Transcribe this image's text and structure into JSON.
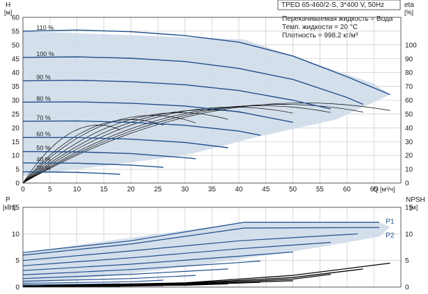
{
  "title": "TPED 65-460/2-S, 3*400 V, 50Hz",
  "info_lines": [
    "Перекачиваемая жидкость = Вода",
    "Темп. жидкости = 20 °C",
    "Плотность = 998.2 кг/м³"
  ],
  "colors": {
    "curve": "#1f4f8c",
    "area_fill": "#cfdcea",
    "eff_curve": "#000000",
    "grid": "#bfbfbf"
  },
  "chart_data": [
    {
      "type": "line",
      "y_label_letter": "H",
      "y_unit": "[м]",
      "right_label": "eta",
      "right_unit": "[%]",
      "x_label": "Q",
      "x_unit": "[м³/ч]",
      "xlim": [
        0,
        70
      ],
      "ylim": [
        0,
        60
      ],
      "right_ylim": [
        0,
        120
      ],
      "x_ticks": [
        0,
        5,
        10,
        15,
        20,
        25,
        30,
        35,
        40,
        45,
        50,
        55,
        60,
        65
      ],
      "y_ticks": [
        0,
        5,
        10,
        15,
        20,
        25,
        30,
        35,
        40,
        45,
        50,
        55,
        60
      ],
      "right_ticks": [
        0,
        10,
        20,
        30,
        40,
        50,
        60,
        70,
        80,
        90,
        100
      ],
      "grid": true,
      "operating_range": [
        [
          0,
          55
        ],
        [
          41,
          52
        ],
        [
          65,
          36
        ],
        [
          68,
          32
        ],
        [
          58,
          23
        ],
        [
          44,
          17
        ],
        [
          30,
          10
        ],
        [
          14,
          6
        ],
        [
          0,
          2.5
        ]
      ],
      "series": [
        {
          "name": "110 %",
          "x": [
            0,
            10,
            20,
            30,
            40,
            50,
            60,
            68
          ],
          "y": [
            55,
            55.4,
            54.8,
            53.4,
            51,
            46,
            38.5,
            32
          ]
        },
        {
          "name": "100 %",
          "x": [
            0,
            10,
            20,
            30,
            40,
            50,
            60,
            63
          ],
          "y": [
            45.5,
            45.7,
            45.2,
            44,
            41.5,
            37.5,
            31,
            28.5
          ]
        },
        {
          "name": "90 %",
          "x": [
            0,
            10,
            20,
            30,
            40,
            50,
            57
          ],
          "y": [
            37,
            37.2,
            36.7,
            35.6,
            33.5,
            30,
            26.8
          ]
        },
        {
          "name": "80 %",
          "x": [
            0,
            10,
            20,
            30,
            40,
            50
          ],
          "y": [
            29.3,
            29.4,
            28.9,
            27.9,
            25.8,
            22
          ]
        },
        {
          "name": "70 %",
          "x": [
            0,
            10,
            20,
            30,
            40,
            44
          ],
          "y": [
            22.4,
            22.5,
            22,
            20.9,
            18.8,
            17.3
          ]
        },
        {
          "name": "60 %",
          "x": [
            0,
            10,
            20,
            30,
            38
          ],
          "y": [
            16.5,
            16.5,
            15.9,
            14.7,
            12.8
          ]
        },
        {
          "name": "50 %",
          "x": [
            0,
            10,
            20,
            30,
            32
          ],
          "y": [
            11.4,
            11.3,
            10.7,
            9.2,
            8.8
          ]
        },
        {
          "name": "40 %",
          "x": [
            0,
            10,
            20,
            26
          ],
          "y": [
            7.3,
            7.2,
            6.5,
            5.7
          ]
        },
        {
          "name": "30 %",
          "x": [
            0,
            10,
            18
          ],
          "y": [
            4.1,
            3.9,
            3.2
          ]
        }
      ],
      "efficiency_curves": [
        {
          "q_max": 68,
          "eta_peak": 58,
          "q_peak": 52
        },
        {
          "q_max": 63,
          "eta_peak": 57,
          "q_peak": 48
        },
        {
          "q_max": 57,
          "eta_peak": 56,
          "q_peak": 44
        },
        {
          "q_max": 50,
          "eta_peak": 55,
          "q_peak": 39
        },
        {
          "q_max": 44,
          "eta_peak": 53,
          "q_peak": 34
        },
        {
          "q_max": 38,
          "eta_peak": 51,
          "q_peak": 29
        },
        {
          "q_max": 32,
          "eta_peak": 49,
          "q_peak": 24
        },
        {
          "q_max": 26,
          "eta_peak": 46,
          "q_peak": 20
        },
        {
          "q_max": 18,
          "eta_peak": 42,
          "q_peak": 14
        }
      ]
    },
    {
      "type": "line",
      "y_label_letter": "P",
      "y_unit": "[кВт]",
      "right_label": "NPSH",
      "right_unit": "[м]",
      "xlim": [
        0,
        70
      ],
      "ylim": [
        0,
        15
      ],
      "right_ylim": [
        0,
        15
      ],
      "y_ticks": [
        0,
        5,
        10,
        15
      ],
      "right_ticks": [
        0,
        5,
        10,
        15
      ],
      "x_ticks": [
        0,
        5,
        10,
        15,
        20,
        25,
        30,
        35,
        40,
        45,
        50,
        55,
        60,
        65
      ],
      "grid": true,
      "series_labels": [
        "P1",
        "P2"
      ],
      "power_range": [
        [
          0,
          6.5
        ],
        [
          41,
          12.2
        ],
        [
          66,
          12.2
        ],
        [
          68,
          11.3
        ],
        [
          66,
          9.5
        ],
        [
          55,
          7.5
        ],
        [
          45,
          6
        ],
        [
          35,
          4.5
        ],
        [
          25,
          3.2
        ],
        [
          15,
          2
        ],
        [
          8,
          1.3
        ],
        [
          0,
          0.8
        ]
      ],
      "series": [
        {
          "name": "P1",
          "x": [
            0,
            20,
            41,
            66
          ],
          "y": [
            6.5,
            8.7,
            12.2,
            12.2
          ]
        },
        {
          "name": "P2",
          "x": [
            0,
            20,
            41,
            66
          ],
          "y": [
            6.0,
            8.1,
            11.1,
            11.2
          ]
        },
        {
          "x": [
            0,
            20,
            40,
            62
          ],
          "y": [
            5.0,
            6.8,
            8.7,
            10.0
          ]
        },
        {
          "x": [
            0,
            20,
            40,
            57
          ],
          "y": [
            4.0,
            5.5,
            7.2,
            8.4
          ]
        },
        {
          "x": [
            0,
            20,
            40,
            50
          ],
          "y": [
            3.1,
            4.3,
            5.8,
            6.6
          ]
        },
        {
          "x": [
            0,
            20,
            40,
            44
          ],
          "y": [
            2.3,
            3.3,
            4.6,
            4.9
          ]
        },
        {
          "x": [
            0,
            20,
            38
          ],
          "y": [
            1.6,
            2.4,
            3.4
          ]
        },
        {
          "x": [
            0,
            20,
            32
          ],
          "y": [
            1.1,
            1.6,
            2.2
          ]
        },
        {
          "x": [
            0,
            20,
            26
          ],
          "y": [
            0.7,
            1.0,
            1.3
          ]
        },
        {
          "x": [
            0,
            18
          ],
          "y": [
            0.4,
            0.6
          ]
        }
      ],
      "npsh_curves": [
        {
          "x": [
            0,
            30,
            50,
            68
          ],
          "y": [
            0.2,
            0.8,
            2.2,
            4.5
          ]
        },
        {
          "x": [
            0,
            30,
            50,
            63
          ],
          "y": [
            0.2,
            0.7,
            1.8,
            3.4
          ]
        },
        {
          "x": [
            0,
            30,
            50,
            57
          ],
          "y": [
            0.2,
            0.6,
            1.5,
            2.4
          ]
        },
        {
          "x": [
            0,
            30,
            50
          ],
          "y": [
            0.15,
            0.5,
            1.2
          ]
        },
        {
          "x": [
            0,
            30,
            44
          ],
          "y": [
            0.1,
            0.4,
            0.9
          ]
        },
        {
          "x": [
            0,
            30,
            38
          ],
          "y": [
            0.1,
            0.35,
            0.6
          ]
        },
        {
          "x": [
            0,
            20,
            32
          ],
          "y": [
            0.1,
            0.25,
            0.45
          ]
        },
        {
          "x": [
            0,
            20,
            26
          ],
          "y": [
            0.05,
            0.2,
            0.3
          ]
        },
        {
          "x": [
            0,
            18
          ],
          "y": [
            0.05,
            0.15
          ]
        }
      ]
    }
  ]
}
